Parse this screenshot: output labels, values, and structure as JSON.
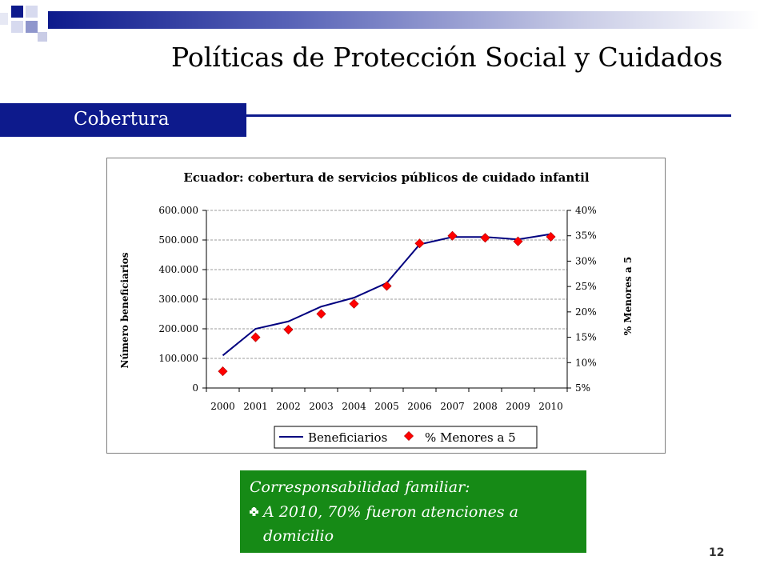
{
  "slide": {
    "title": "Políticas de Protección Social y Cuidados",
    "section_label": "Cobertura",
    "page_number": "12",
    "accent_color": "#0d1a8c",
    "note_color": "#168a16"
  },
  "note": {
    "heading": "Corresponsabilidad familiar:",
    "bullet_icon": "diamond-bullet-icon",
    "bullet_line1": "A 2010, 70% fueron atenciones a",
    "bullet_line2": "domicilio"
  },
  "chart_data": {
    "type": "line",
    "title": "Ecuador: cobertura de servicios públicos de cuidado infantil",
    "xlabel": "",
    "ylabel": "Número beneficiarios",
    "y2label": "% Menores a 5",
    "categories": [
      "2000",
      "2001",
      "2002",
      "2003",
      "2004",
      "2005",
      "2006",
      "2007",
      "2008",
      "2009",
      "2010"
    ],
    "ylim": [
      0,
      600000
    ],
    "y2lim": [
      0.05,
      0.4
    ],
    "y_ticks": [
      0,
      100000,
      200000,
      300000,
      400000,
      500000,
      600000
    ],
    "y_tick_labels": [
      "0",
      "100.000",
      "200.000",
      "300.000",
      "400.000",
      "500.000",
      "600.000"
    ],
    "y2_ticks": [
      0.05,
      0.1,
      0.15,
      0.2,
      0.25,
      0.3,
      0.35,
      0.4
    ],
    "y2_tick_labels": [
      "5%",
      "10%",
      "15%",
      "20%",
      "25%",
      "30%",
      "35%",
      "40%"
    ],
    "grid": true,
    "legend_position": "bottom",
    "series": [
      {
        "name": "Beneficiarios",
        "axis": "left",
        "style": "line",
        "color": "#00007f",
        "values": [
          110000,
          200000,
          225000,
          275000,
          305000,
          355000,
          485000,
          510000,
          510000,
          502000,
          520000
        ]
      },
      {
        "name": "% Menores a 5",
        "axis": "right",
        "style": "marker",
        "color": "#ff0000",
        "values": [
          0.083,
          0.15,
          0.165,
          0.196,
          0.216,
          0.251,
          0.335,
          0.35,
          0.346,
          0.339,
          0.348
        ]
      }
    ]
  }
}
